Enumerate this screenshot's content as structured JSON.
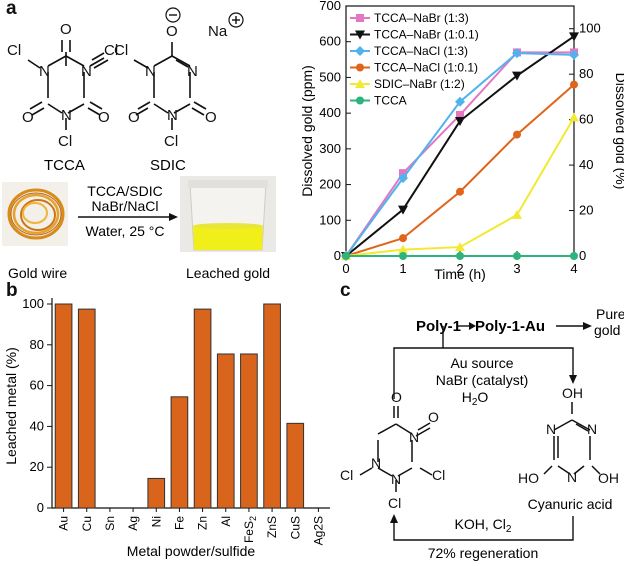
{
  "panels": {
    "a": "a",
    "b": "b",
    "c": "c"
  },
  "scheme_a": {
    "tcca_label": "TCCA",
    "sdic_label": "SDIC",
    "na": "Na",
    "cl": "Cl",
    "o": "O",
    "n": "N",
    "reagents": "TCCA/SDIC",
    "catalyst": "NaBr/NaCl",
    "conditions": "Water, 25 °C",
    "gold_wire_label": "Gold wire",
    "leached_label": "Leached gold"
  },
  "scheme_c": {
    "poly1": "Poly-1",
    "poly1au": "Poly-1-Au",
    "pure_gold": "Pure gold",
    "au_source": "Au source",
    "nabr_cat": "NaBr (catalyst)",
    "water": "H2O",
    "cyanuric": "Cyanuric acid",
    "oh": "OH",
    "ho": "HO",
    "regen_reagents": "KOH, Cl2",
    "regeneration": "72% regeneration"
  },
  "chart_data": [
    {
      "type": "line",
      "xlabel": "Time (h)",
      "ylabel": "Dissolved gold (ppm)",
      "y2label": "Dissolved gold (%)",
      "xlim": [
        0,
        4
      ],
      "ylim": [
        0,
        700
      ],
      "y2lim": [
        0,
        110
      ],
      "x_ticks": [
        0,
        1,
        2,
        3,
        4
      ],
      "y_ticks": [
        0,
        100,
        200,
        300,
        400,
        500,
        600,
        700
      ],
      "y2_ticks": [
        0,
        20,
        40,
        60,
        80,
        100
      ],
      "legend_position": "top-left",
      "x": [
        0,
        1,
        2,
        3,
        4
      ],
      "series": [
        {
          "name": "TCCA–NaBr (1:3)",
          "color": "#e377c2",
          "marker": "square",
          "values": [
            0,
            232,
            395,
            570,
            570
          ]
        },
        {
          "name": "TCCA–NaBr (1:0.1)",
          "color": "#111111",
          "marker": "triangle-down",
          "values": [
            0,
            130,
            378,
            505,
            615
          ]
        },
        {
          "name": "TCCA–NaCl (1:3)",
          "color": "#4fb3ee",
          "marker": "diamond",
          "values": [
            0,
            218,
            432,
            568,
            563
          ]
        },
        {
          "name": "TCCA–NaCl (1:0.1)",
          "color": "#e0641a",
          "marker": "circle",
          "values": [
            0,
            50,
            180,
            340,
            480
          ]
        },
        {
          "name": "SDIC–NaBr (1:2)",
          "color": "#f2e933",
          "marker": "triangle-up",
          "values": [
            0,
            18,
            25,
            115,
            388
          ]
        },
        {
          "name": "TCCA",
          "color": "#2db37d",
          "marker": "circle",
          "values": [
            0,
            0,
            0,
            0,
            0
          ]
        }
      ]
    },
    {
      "type": "bar",
      "xlabel": "Metal powder/sulfide",
      "ylabel": "Leached metal (%)",
      "ylim": [
        0,
        100
      ],
      "y_ticks": [
        0,
        20,
        40,
        60,
        80,
        100
      ],
      "bar_color": "#d9641c",
      "categories": [
        "Au",
        "Cu",
        "Sn",
        "Ag",
        "Ni",
        "Fe",
        "Zn",
        "Al",
        "FeS2",
        "ZnS",
        "CuS",
        "Ag2S"
      ],
      "values": [
        100,
        97.5,
        0,
        0,
        14.5,
        54.5,
        97.5,
        75.5,
        75.5,
        100,
        41.5,
        0
      ]
    }
  ]
}
